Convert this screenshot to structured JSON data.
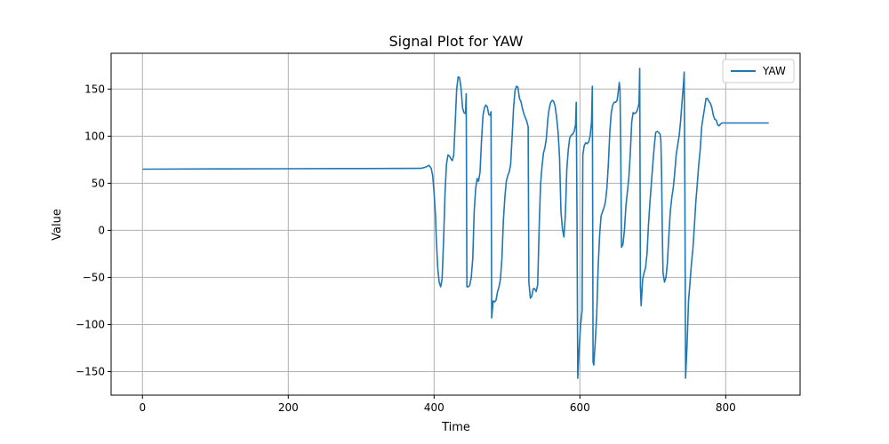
{
  "chart_data": {
    "type": "line",
    "title": "Signal Plot for YAW",
    "xlabel": "Time",
    "ylabel": "Value",
    "xlim": [
      -43,
      902
    ],
    "ylim": [
      -175,
      188
    ],
    "xticks": [
      0,
      200,
      400,
      600,
      800
    ],
    "yticks": [
      -150,
      -100,
      -50,
      0,
      50,
      100,
      150
    ],
    "grid": true,
    "legend_position": "top-right",
    "series": [
      {
        "name": "YAW",
        "color": "#1f77b4",
        "points": [
          [
            0,
            65
          ],
          [
            100,
            65.2
          ],
          [
            200,
            65.4
          ],
          [
            300,
            65.6
          ],
          [
            382,
            65.8
          ],
          [
            388,
            67
          ],
          [
            393,
            69
          ],
          [
            396,
            66
          ],
          [
            398,
            58
          ],
          [
            400,
            40
          ],
          [
            402,
            15
          ],
          [
            403,
            -10
          ],
          [
            405,
            -40
          ],
          [
            407,
            -55
          ],
          [
            409,
            -60
          ],
          [
            411,
            -52
          ],
          [
            413,
            -10
          ],
          [
            415,
            40
          ],
          [
            417,
            70
          ],
          [
            419,
            80
          ],
          [
            421,
            79
          ],
          [
            423,
            76
          ],
          [
            425,
            74
          ],
          [
            427,
            80
          ],
          [
            429,
            115
          ],
          [
            431,
            150
          ],
          [
            433,
            163
          ],
          [
            435,
            162
          ],
          [
            437,
            150
          ],
          [
            439,
            130
          ],
          [
            441,
            125
          ],
          [
            443,
            124
          ],
          [
            444,
            145
          ],
          [
            445,
            -60
          ],
          [
            447,
            -60
          ],
          [
            449,
            -58
          ],
          [
            451,
            -50
          ],
          [
            453,
            -30
          ],
          [
            455,
            20
          ],
          [
            457,
            45
          ],
          [
            459,
            55
          ],
          [
            461,
            52
          ],
          [
            463,
            62
          ],
          [
            465,
            95
          ],
          [
            467,
            122
          ],
          [
            469,
            130
          ],
          [
            471,
            133
          ],
          [
            473,
            131
          ],
          [
            475,
            123
          ],
          [
            477,
            122
          ],
          [
            478,
            126
          ],
          [
            479,
            -93
          ],
          [
            481,
            -75
          ],
          [
            483,
            -76
          ],
          [
            485,
            -74
          ],
          [
            487,
            -65
          ],
          [
            489,
            -60
          ],
          [
            491,
            -52
          ],
          [
            493,
            -30
          ],
          [
            495,
            10
          ],
          [
            497,
            35
          ],
          [
            499,
            52
          ],
          [
            501,
            58
          ],
          [
            503,
            62
          ],
          [
            505,
            70
          ],
          [
            507,
            100
          ],
          [
            509,
            130
          ],
          [
            511,
            148
          ],
          [
            513,
            153
          ],
          [
            515,
            152
          ],
          [
            517,
            140
          ],
          [
            519,
            137
          ],
          [
            521,
            130
          ],
          [
            523,
            124
          ],
          [
            525,
            120
          ],
          [
            527,
            116
          ],
          [
            529,
            110
          ],
          [
            530,
            -55
          ],
          [
            532,
            -72
          ],
          [
            534,
            -70
          ],
          [
            536,
            -62
          ],
          [
            538,
            -62
          ],
          [
            540,
            -65
          ],
          [
            542,
            -58
          ],
          [
            544,
            0
          ],
          [
            546,
            48
          ],
          [
            548,
            68
          ],
          [
            550,
            82
          ],
          [
            552,
            88
          ],
          [
            554,
            98
          ],
          [
            556,
            118
          ],
          [
            558,
            130
          ],
          [
            560,
            136
          ],
          [
            562,
            138
          ],
          [
            564,
            137
          ],
          [
            566,
            132
          ],
          [
            568,
            120
          ],
          [
            570,
            105
          ],
          [
            572,
            78
          ],
          [
            574,
            20
          ],
          [
            576,
            2
          ],
          [
            578,
            -7
          ],
          [
            580,
            15
          ],
          [
            582,
            65
          ],
          [
            584,
            85
          ],
          [
            586,
            98
          ],
          [
            588,
            101
          ],
          [
            590,
            102
          ],
          [
            592,
            105
          ],
          [
            594,
            112
          ],
          [
            595,
            136
          ],
          [
            596,
            20
          ],
          [
            597,
            -157
          ],
          [
            599,
            -125
          ],
          [
            601,
            -100
          ],
          [
            603,
            -85
          ],
          [
            604,
            80
          ],
          [
            606,
            90
          ],
          [
            608,
            93
          ],
          [
            610,
            92
          ],
          [
            612,
            94
          ],
          [
            614,
            100
          ],
          [
            616,
            115
          ],
          [
            617,
            153
          ],
          [
            618,
            -140
          ],
          [
            619,
            -143
          ],
          [
            621,
            -118
          ],
          [
            623,
            -90
          ],
          [
            625,
            -40
          ],
          [
            627,
            -5
          ],
          [
            629,
            15
          ],
          [
            631,
            20
          ],
          [
            633,
            24
          ],
          [
            635,
            30
          ],
          [
            637,
            45
          ],
          [
            639,
            70
          ],
          [
            641,
            105
          ],
          [
            643,
            125
          ],
          [
            645,
            133
          ],
          [
            647,
            136
          ],
          [
            649,
            136
          ],
          [
            651,
            138
          ],
          [
            653,
            150
          ],
          [
            654,
            157
          ],
          [
            655,
            150
          ],
          [
            656,
            80
          ],
          [
            657,
            -18
          ],
          [
            659,
            -15
          ],
          [
            661,
            0
          ],
          [
            663,
            25
          ],
          [
            665,
            40
          ],
          [
            667,
            55
          ],
          [
            669,
            80
          ],
          [
            671,
            115
          ],
          [
            673,
            125
          ],
          [
            675,
            124
          ],
          [
            677,
            125
          ],
          [
            679,
            128
          ],
          [
            681,
            135
          ],
          [
            682,
            172
          ],
          [
            683,
            -60
          ],
          [
            684,
            -80
          ],
          [
            686,
            -52
          ],
          [
            688,
            -45
          ],
          [
            690,
            -40
          ],
          [
            692,
            -25
          ],
          [
            694,
            5
          ],
          [
            696,
            30
          ],
          [
            698,
            50
          ],
          [
            700,
            70
          ],
          [
            702,
            90
          ],
          [
            704,
            104
          ],
          [
            706,
            105
          ],
          [
            708,
            104
          ],
          [
            710,
            102
          ],
          [
            711,
            95
          ],
          [
            712,
            60
          ],
          [
            713,
            0
          ],
          [
            714,
            -45
          ],
          [
            716,
            -55
          ],
          [
            718,
            -50
          ],
          [
            720,
            -35
          ],
          [
            722,
            -5
          ],
          [
            724,
            20
          ],
          [
            726,
            35
          ],
          [
            728,
            45
          ],
          [
            730,
            60
          ],
          [
            732,
            80
          ],
          [
            734,
            90
          ],
          [
            736,
            100
          ],
          [
            738,
            115
          ],
          [
            740,
            135
          ],
          [
            742,
            155
          ],
          [
            743,
            168
          ],
          [
            744,
            40
          ],
          [
            745,
            -157
          ],
          [
            747,
            -120
          ],
          [
            749,
            -75
          ],
          [
            751,
            -55
          ],
          [
            753,
            -35
          ],
          [
            755,
            -20
          ],
          [
            757,
            5
          ],
          [
            759,
            30
          ],
          [
            761,
            50
          ],
          [
            763,
            70
          ],
          [
            765,
            85
          ],
          [
            767,
            110
          ],
          [
            769,
            120
          ],
          [
            771,
            130
          ],
          [
            773,
            140
          ],
          [
            775,
            140
          ],
          [
            777,
            137
          ],
          [
            779,
            135
          ],
          [
            781,
            130
          ],
          [
            783,
            122
          ],
          [
            785,
            118
          ],
          [
            787,
            117
          ],
          [
            789,
            112
          ],
          [
            791,
            111
          ],
          [
            793,
            113
          ],
          [
            795,
            114
          ],
          [
            800,
            114
          ],
          [
            820,
            114
          ],
          [
            859,
            114
          ]
        ]
      }
    ]
  }
}
